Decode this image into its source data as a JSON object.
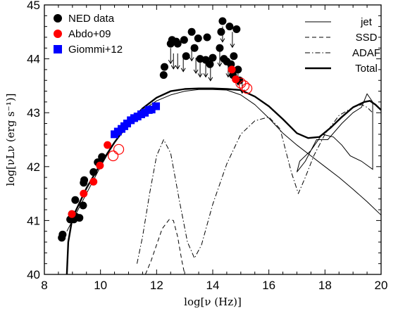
{
  "chart_data": {
    "type": "scatter",
    "xlabel": "log[ν (Hz)]",
    "ylabel": "log[νLν (erg s⁻¹)]",
    "xlim": [
      8,
      20
    ],
    "ylim": [
      40,
      45
    ],
    "x_ticks": [
      "8",
      "10",
      "12",
      "14",
      "16",
      "18",
      "20"
    ],
    "y_ticks": [
      "40",
      "41",
      "42",
      "43",
      "44",
      "45"
    ],
    "legend_left": [
      {
        "label": "NED data",
        "marker": "circle",
        "color": "#000000"
      },
      {
        "label": "Abdo+09",
        "marker": "circle",
        "color": "#ff0000"
      },
      {
        "label": "Giommi+12",
        "marker": "square",
        "color": "#0000ff"
      }
    ],
    "legend_right": [
      {
        "label": "jet",
        "style": "solid-thin"
      },
      {
        "label": "SSD",
        "style": "dashed"
      },
      {
        "label": "ADAF",
        "style": "dashdot"
      },
      {
        "label": "Total",
        "style": "solid-thick"
      }
    ],
    "series": [
      {
        "name": "NED data",
        "marker": "circle",
        "color": "#000000",
        "points": [
          [
            8.62,
            40.68
          ],
          [
            8.65,
            40.74
          ],
          [
            8.92,
            41.02
          ],
          [
            8.98,
            41.12
          ],
          [
            9.05,
            41.02
          ],
          [
            9.1,
            41.38
          ],
          [
            9.12,
            41.07
          ],
          [
            9.25,
            41.05
          ],
          [
            9.38,
            41.28
          ],
          [
            9.4,
            41.7
          ],
          [
            9.42,
            41.75
          ],
          [
            9.75,
            41.9
          ],
          [
            9.9,
            42.08
          ],
          [
            10.05,
            42.18
          ],
          [
            12.25,
            43.7
          ],
          [
            12.28,
            43.85
          ],
          [
            12.5,
            44.28
          ],
          [
            12.55,
            44.35
          ],
          [
            12.7,
            44.32
          ],
          [
            12.75,
            44.28
          ],
          [
            12.98,
            44.35
          ],
          [
            13.05,
            44.05
          ],
          [
            13.25,
            44.5
          ],
          [
            13.35,
            44.2
          ],
          [
            13.48,
            44.38
          ],
          [
            13.55,
            44.0
          ],
          [
            13.75,
            43.98
          ],
          [
            13.8,
            44.4
          ],
          [
            13.9,
            43.9
          ],
          [
            14.0,
            44.02
          ],
          [
            14.25,
            44.2
          ],
          [
            14.3,
            44.5
          ],
          [
            14.35,
            44.7
          ],
          [
            14.4,
            44.0
          ],
          [
            14.5,
            43.95
          ],
          [
            14.6,
            44.6
          ],
          [
            14.65,
            43.9
          ],
          [
            14.72,
            43.7
          ],
          [
            14.75,
            44.05
          ],
          [
            14.85,
            44.55
          ],
          [
            14.9,
            43.8
          ],
          [
            14.95,
            43.6
          ]
        ]
      },
      {
        "name": "Abdo+09",
        "marker": "circle",
        "color": "#ff0000",
        "points": [
          [
            8.98,
            41.12
          ],
          [
            9.4,
            41.5
          ],
          [
            9.75,
            41.72
          ],
          [
            9.98,
            42.02
          ],
          [
            10.25,
            42.4
          ],
          [
            14.68,
            43.8
          ],
          [
            14.82,
            43.62
          ]
        ],
        "open_points": [
          [
            10.45,
            42.2
          ],
          [
            10.65,
            42.32
          ],
          [
            15.0,
            43.55
          ],
          [
            15.12,
            43.5
          ],
          [
            15.22,
            43.45
          ]
        ]
      },
      {
        "name": "Giommi+12",
        "marker": "square",
        "color": "#0000ff",
        "points": [
          [
            10.5,
            42.6
          ],
          [
            10.62,
            42.65
          ],
          [
            10.75,
            42.7
          ],
          [
            10.85,
            42.75
          ],
          [
            10.95,
            42.8
          ],
          [
            11.08,
            42.86
          ],
          [
            11.2,
            42.9
          ],
          [
            11.32,
            42.93
          ],
          [
            11.45,
            42.97
          ],
          [
            11.58,
            43.0
          ],
          [
            11.72,
            43.05
          ],
          [
            11.82,
            43.06
          ],
          [
            11.98,
            43.12
          ]
        ]
      },
      {
        "name": "jet",
        "style": "solid-thin",
        "points": [
          [
            8.8,
            40.8
          ],
          [
            9.2,
            41.2
          ],
          [
            9.6,
            41.6
          ],
          [
            10.0,
            42.0
          ],
          [
            10.5,
            42.45
          ],
          [
            11.0,
            42.8
          ],
          [
            11.5,
            43.05
          ],
          [
            12.0,
            43.22
          ],
          [
            12.5,
            43.33
          ],
          [
            13.0,
            43.4
          ],
          [
            13.5,
            43.43
          ],
          [
            14.0,
            43.43
          ],
          [
            14.5,
            43.42
          ],
          [
            15.0,
            43.33
          ],
          [
            15.5,
            43.15
          ],
          [
            16.0,
            42.9
          ],
          [
            16.5,
            42.62
          ],
          [
            17.0,
            42.4
          ],
          [
            17.5,
            42.2
          ],
          [
            18.0,
            42.0
          ],
          [
            18.5,
            41.8
          ],
          [
            19.0,
            41.58
          ],
          [
            19.5,
            41.35
          ],
          [
            20.0,
            41.1
          ]
        ]
      },
      {
        "name": "SSD",
        "style": "dashed",
        "points": [
          [
            11.6,
            40.0
          ],
          [
            11.8,
            40.25
          ],
          [
            12.0,
            40.55
          ],
          [
            12.2,
            40.85
          ],
          [
            12.45,
            41.02
          ],
          [
            12.6,
            41.0
          ],
          [
            12.75,
            40.7
          ],
          [
            12.9,
            40.25
          ],
          [
            13.0,
            40.0
          ]
        ]
      },
      {
        "name": "ADAF",
        "style": "dashdot",
        "points": [
          [
            11.3,
            40.2
          ],
          [
            11.5,
            40.7
          ],
          [
            11.75,
            41.5
          ],
          [
            12.0,
            42.2
          ],
          [
            12.25,
            42.5
          ],
          [
            12.5,
            42.25
          ],
          [
            12.8,
            41.4
          ],
          [
            13.1,
            40.6
          ],
          [
            13.35,
            40.3
          ],
          [
            13.6,
            40.55
          ],
          [
            14.0,
            41.3
          ],
          [
            14.5,
            42.05
          ],
          [
            15.0,
            42.6
          ],
          [
            15.5,
            42.85
          ],
          [
            16.0,
            42.92
          ],
          [
            16.4,
            42.7
          ],
          [
            16.8,
            41.9
          ],
          [
            17.05,
            41.5
          ],
          [
            17.3,
            41.8
          ],
          [
            17.6,
            42.2
          ],
          [
            18.0,
            42.6
          ],
          [
            18.5,
            42.95
          ],
          [
            19.0,
            43.1
          ],
          [
            19.3,
            43.15
          ],
          [
            19.5,
            43.1
          ],
          [
            19.7,
            43.0
          ]
        ]
      },
      {
        "name": "Total",
        "style": "solid-thick",
        "points": [
          [
            8.8,
            40.0
          ],
          [
            8.85,
            40.6
          ],
          [
            9.0,
            41.05
          ],
          [
            9.5,
            41.6
          ],
          [
            10.0,
            42.05
          ],
          [
            10.5,
            42.45
          ],
          [
            11.0,
            42.8
          ],
          [
            11.5,
            43.08
          ],
          [
            12.0,
            43.28
          ],
          [
            12.5,
            43.4
          ],
          [
            13.0,
            43.44
          ],
          [
            13.5,
            43.45
          ],
          [
            14.0,
            43.45
          ],
          [
            14.5,
            43.44
          ],
          [
            15.0,
            43.42
          ],
          [
            15.5,
            43.3
          ],
          [
            16.0,
            43.12
          ],
          [
            16.5,
            42.88
          ],
          [
            17.0,
            42.62
          ],
          [
            17.4,
            42.53
          ],
          [
            17.8,
            42.55
          ],
          [
            18.2,
            42.72
          ],
          [
            18.6,
            42.92
          ],
          [
            19.0,
            43.1
          ],
          [
            19.4,
            43.2
          ],
          [
            19.6,
            43.22
          ],
          [
            19.8,
            43.15
          ],
          [
            20.0,
            43.05
          ]
        ]
      }
    ],
    "bowtie_polygon": [
      [
        17.0,
        41.9
      ],
      [
        17.3,
        42.1
      ],
      [
        17.7,
        42.5
      ],
      [
        18.1,
        42.5
      ],
      [
        18.6,
        42.8
      ],
      [
        19.0,
        43.0
      ],
      [
        19.3,
        43.1
      ],
      [
        19.5,
        43.35
      ],
      [
        19.7,
        43.2
      ],
      [
        19.7,
        41.95
      ],
      [
        19.3,
        42.1
      ],
      [
        18.9,
        42.2
      ],
      [
        18.6,
        42.4
      ],
      [
        18.3,
        42.55
      ],
      [
        17.9,
        42.6
      ],
      [
        17.5,
        42.3
      ],
      [
        17.1,
        42.1
      ]
    ],
    "upper_limits": [
      [
        12.5,
        44.2
      ],
      [
        12.6,
        44.1
      ],
      [
        12.75,
        44.1
      ],
      [
        12.95,
        44.05
      ],
      [
        13.25,
        44.25
      ],
      [
        13.4,
        44.02
      ],
      [
        13.55,
        43.95
      ],
      [
        13.75,
        43.95
      ],
      [
        13.92,
        43.88
      ],
      [
        14.25,
        44.15
      ],
      [
        14.35,
        44.6
      ],
      [
        14.55,
        43.95
      ],
      [
        14.7,
        44.5
      ],
      [
        14.9,
        43.8
      ],
      [
        15.05,
        43.65
      ]
    ]
  }
}
